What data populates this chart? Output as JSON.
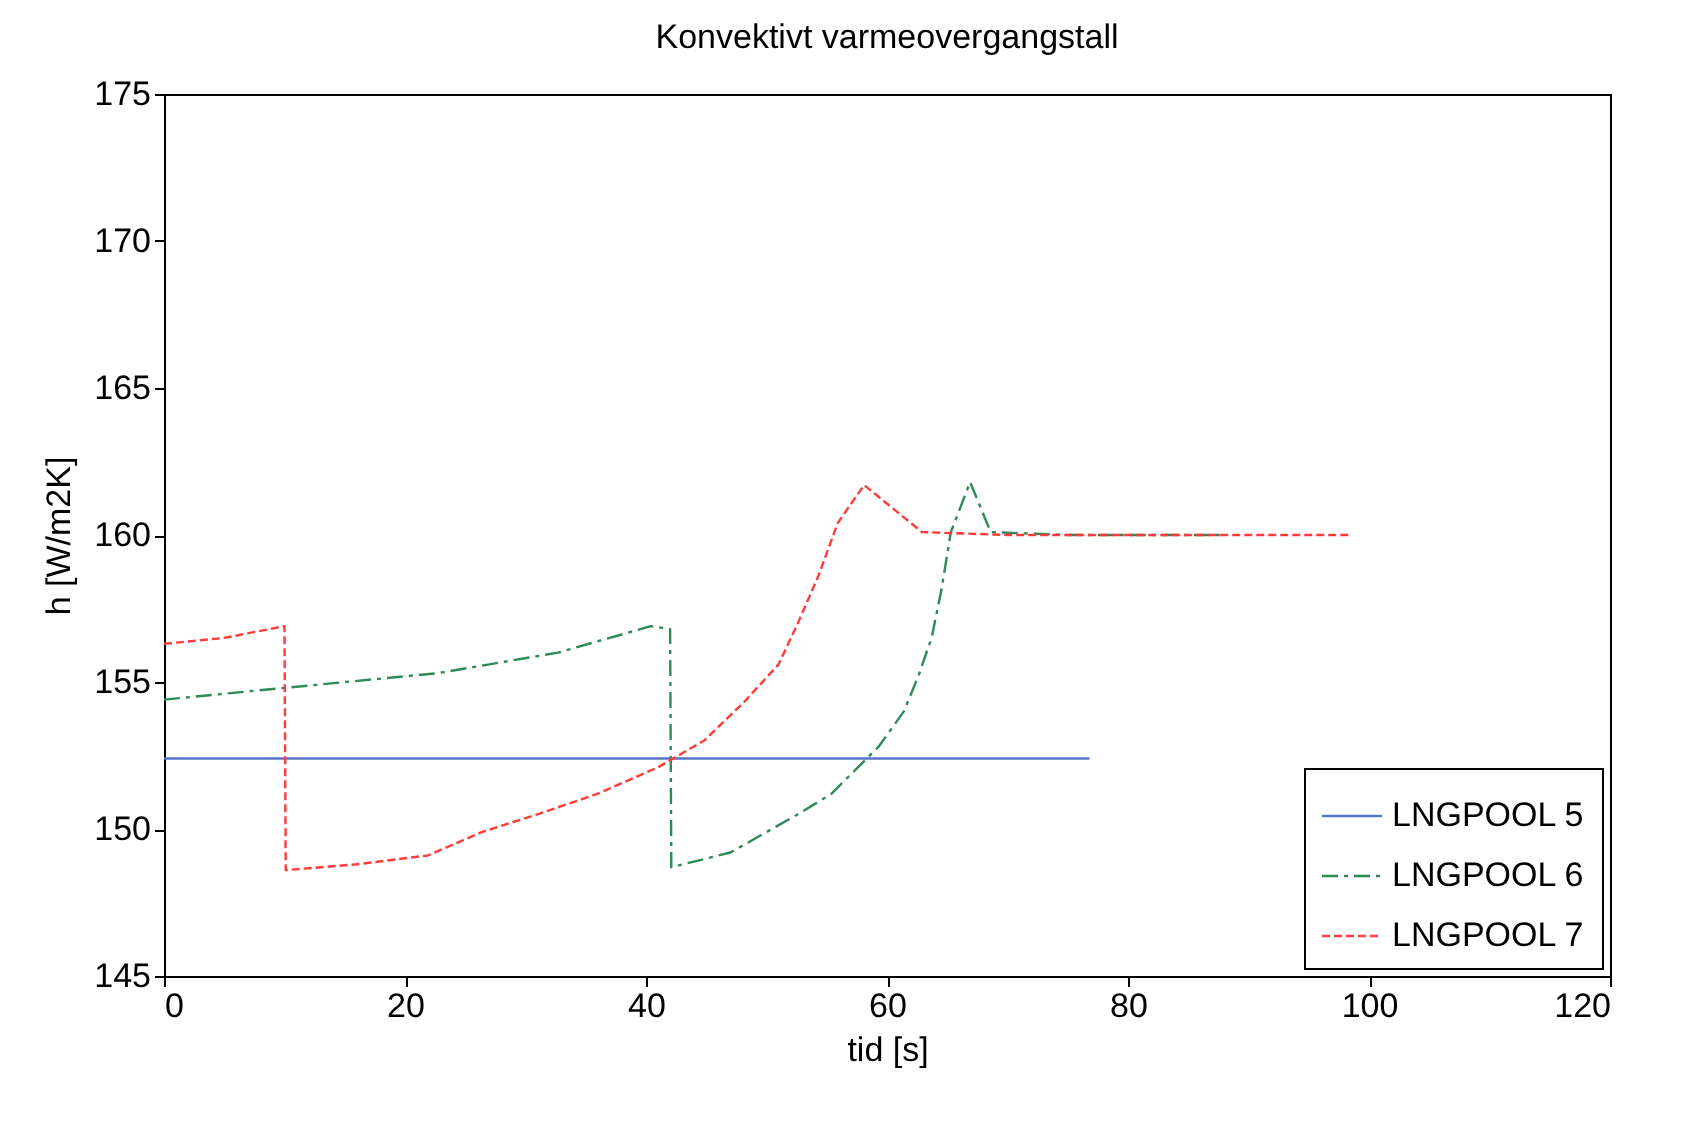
{
  "chart_data": {
    "type": "line",
    "title": "Konvektivt varmeovergangstall",
    "xlabel": "tid [s]",
    "ylabel": "h [W/m2K]",
    "xlim": [
      0,
      120
    ],
    "xticks": [
      0,
      20,
      40,
      60,
      80,
      100,
      120
    ],
    "ylim": [
      145,
      175
    ],
    "yticks": [
      145,
      150,
      155,
      160,
      165,
      170,
      175
    ],
    "grid": false,
    "legend": "bottom right",
    "marker": "none",
    "series": [
      {
        "name": "LNGPOOL 5",
        "color": "#5a73c8",
        "line_style": "solid",
        "x": [
          0,
          76.8
        ],
        "values": [
          152.4,
          152.4
        ]
      },
      {
        "name": "LNGPOOL 6",
        "color": "#2e8b57",
        "line_style": "dashdot",
        "x": [
          0,
          10,
          22.7,
          32.7,
          40.4,
          42,
          42.1,
          47,
          52.6,
          55.4,
          59.3,
          61.4,
          62.6,
          63.7,
          64.5,
          65.3,
          66.9,
          68.6,
          75,
          87.8
        ],
        "values": [
          154.4,
          154.8,
          155.3,
          156,
          156.9,
          156.8,
          148.7,
          149.2,
          150.5,
          151.2,
          152.8,
          154,
          155.2,
          156.5,
          158.1,
          160.1,
          161.8,
          160.1,
          160,
          160
        ]
      },
      {
        "name": "LNGPOOL 7",
        "color": "#ff3b3b",
        "line_style": "dashed",
        "x": [
          0,
          5,
          10,
          10.1,
          16,
          21.9,
          26.4,
          31,
          36,
          41,
          44.8,
          48.1,
          51,
          52.6,
          54.3,
          55.9,
          58.1,
          61.4,
          62.9,
          70,
          98.4
        ],
        "values": [
          156.3,
          156.5,
          156.9,
          148.6,
          148.8,
          149.1,
          149.9,
          150.5,
          151.2,
          152.1,
          153,
          154.3,
          155.6,
          157,
          158.6,
          160.4,
          161.7,
          160.6,
          160.1,
          160,
          160
        ]
      }
    ]
  }
}
